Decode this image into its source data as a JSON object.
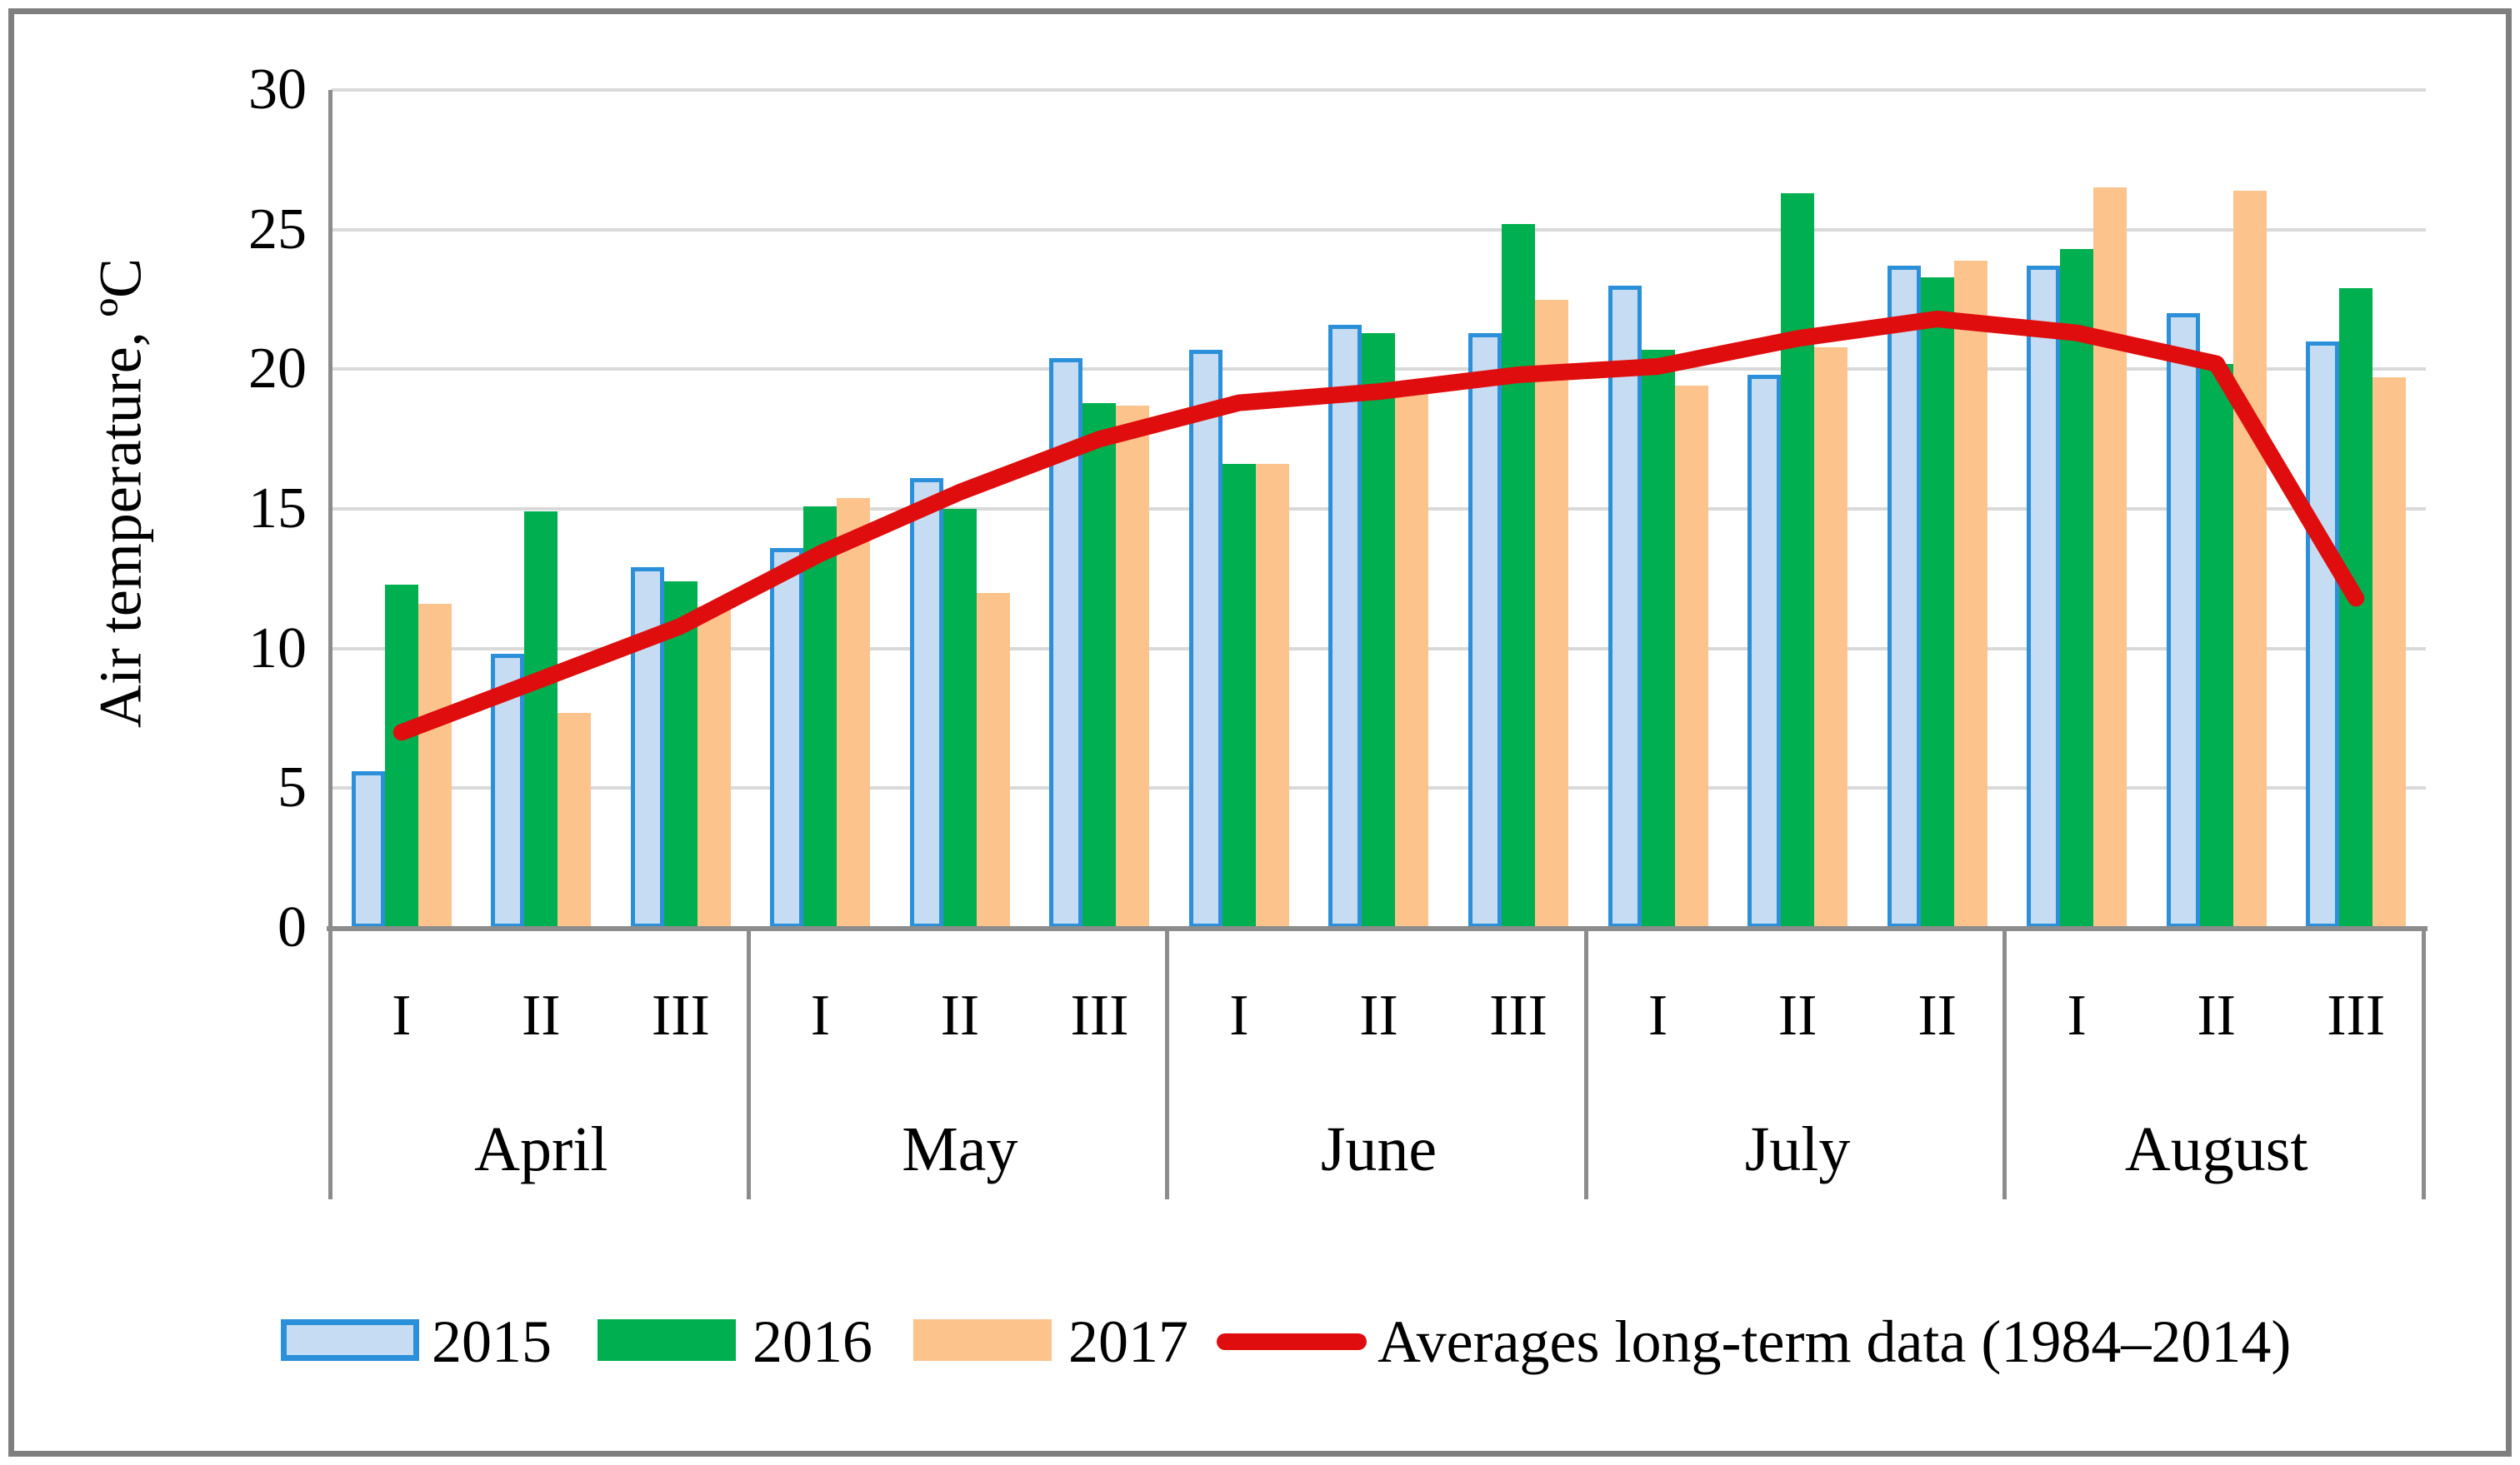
{
  "figure": {
    "kind": "grouped bar chart with average line",
    "background": "#ffffff",
    "frame_color": "#7f7f7f",
    "axis_color": "#8c8c8c",
    "gridline_color": "#d9d9d9"
  },
  "chart_data": {
    "type": "bar",
    "subtype": "grouped-bars-with-line-overlay",
    "title": "",
    "xlabel": "",
    "ylabel": "Air temperature, ºC",
    "ylim": [
      0,
      30
    ],
    "yticks": [
      0,
      5,
      10,
      15,
      20,
      25,
      30
    ],
    "grid": "horizontal",
    "legend_position": "bottom",
    "months": [
      {
        "label": "April",
        "periods": [
          "I",
          "II",
          "III"
        ]
      },
      {
        "label": "May",
        "periods": [
          "I",
          "II",
          "III"
        ]
      },
      {
        "label": "June",
        "periods": [
          "I",
          "II",
          "III"
        ]
      },
      {
        "label": "July",
        "periods": [
          "I",
          "II",
          "II"
        ]
      },
      {
        "label": "August",
        "periods": [
          "I",
          "II",
          "III"
        ]
      }
    ],
    "series": [
      {
        "name": "2015",
        "type": "bar",
        "fill": "#c5dcf2",
        "border": "#2b90d9",
        "values": [
          5.6,
          9.8,
          12.9,
          13.6,
          16.1,
          20.4,
          20.7,
          21.6,
          21.3,
          23.0,
          19.8,
          23.7,
          23.7,
          22.0,
          21.0
        ]
      },
      {
        "name": "2016",
        "type": "bar",
        "fill": "#00b050",
        "border": null,
        "values": [
          12.3,
          14.9,
          12.4,
          15.1,
          15.0,
          18.8,
          16.6,
          21.3,
          25.2,
          20.7,
          26.3,
          23.3,
          24.3,
          20.2,
          22.9
        ]
      },
      {
        "name": "2017",
        "type": "bar",
        "fill": "#fdc38d",
        "border": null,
        "values": [
          11.6,
          7.7,
          11.5,
          15.4,
          12.0,
          18.7,
          16.6,
          19.2,
          22.5,
          19.4,
          20.8,
          23.9,
          26.5,
          26.4,
          19.7
        ]
      },
      {
        "name": "Averages long-term data (1984–2014)",
        "type": "line",
        "fill": "#df0d0d",
        "border": null,
        "values": [
          7.0,
          8.9,
          10.8,
          13.4,
          15.6,
          17.5,
          18.8,
          19.2,
          19.8,
          20.1,
          21.1,
          21.8,
          21.3,
          20.2,
          11.8
        ]
      }
    ]
  }
}
